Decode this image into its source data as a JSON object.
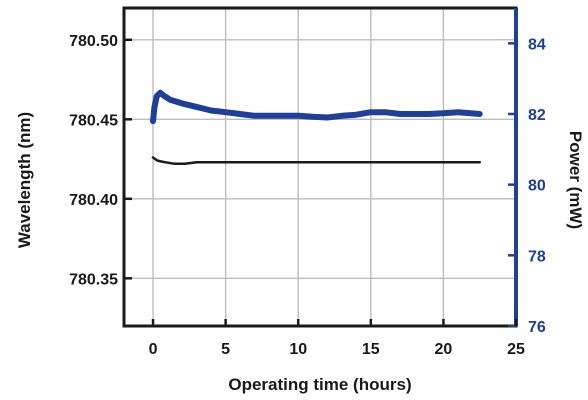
{
  "colors": {
    "frame": "#1a1a1a",
    "grid": "#bdbdbd",
    "wavelength_line": "#1a1a1a",
    "power_line": "#1f3f9a",
    "right_axis": "#1f3f9a"
  },
  "chart_data": {
    "type": "line",
    "title": "",
    "xlabel": "Operating time (hours)",
    "ylabel_left": "Wavelength (nm)",
    "ylabel_right": "Power (mW)",
    "xlim": [
      -2,
      25
    ],
    "xticks": [
      0,
      5,
      10,
      15,
      20,
      25
    ],
    "ylim_left": [
      780.32,
      780.52
    ],
    "yticks_left": [
      780.35,
      780.4,
      780.45,
      780.5
    ],
    "ytick_labels_left": [
      "780.35",
      "780.40",
      "780.45",
      "780.50"
    ],
    "ylim_right": [
      76,
      85
    ],
    "yticks_right": [
      76,
      78,
      80,
      82,
      84
    ],
    "grid": true,
    "series": [
      {
        "axis": "left",
        "x": [
          0,
          0.3,
          0.8,
          1.5,
          2.2,
          3,
          5,
          10,
          15,
          20,
          22.5
        ],
        "y": [
          780.426,
          780.424,
          780.423,
          780.422,
          780.422,
          780.423,
          780.423,
          780.423,
          780.423,
          780.423,
          780.423
        ]
      },
      {
        "axis": "right",
        "x": [
          0,
          0.1,
          0.25,
          0.5,
          0.8,
          1.2,
          2,
          3,
          4,
          5,
          6,
          7,
          8,
          9,
          10,
          11,
          12,
          13,
          14,
          15,
          16,
          17,
          18,
          19,
          20,
          21,
          22.5
        ],
        "y": [
          81.8,
          82.2,
          82.5,
          82.6,
          82.5,
          82.4,
          82.3,
          82.2,
          82.1,
          82.05,
          82.0,
          81.95,
          81.95,
          81.95,
          81.95,
          81.92,
          81.9,
          81.95,
          81.98,
          82.05,
          82.05,
          82.0,
          82.0,
          82.0,
          82.02,
          82.05,
          82.0
        ]
      }
    ]
  }
}
